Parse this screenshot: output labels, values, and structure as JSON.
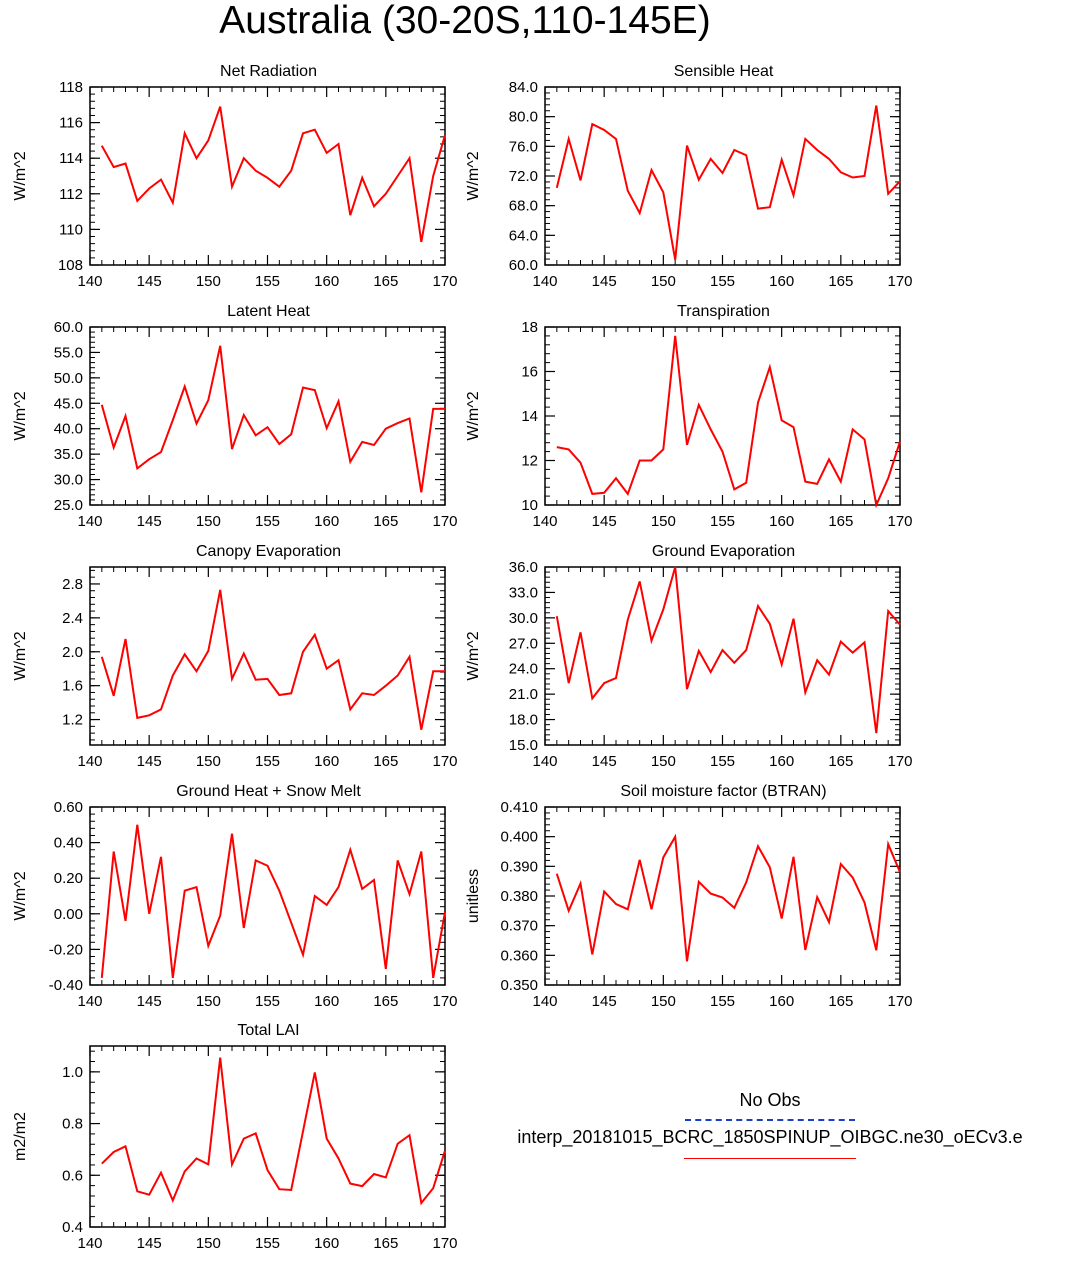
{
  "figure": {
    "title": "Australia (30-20S,110-145E)",
    "line_color": "#ff0000",
    "obs_color": "#1a3fbf"
  },
  "legend": {
    "obs_label": "No Obs",
    "run_label": "interp_20181015_BCRC_1850SPINUP_OIBGC.ne30_oECv3.e"
  },
  "chart_data": [
    {
      "type": "line",
      "title": "Net Radiation",
      "ylabel": "W/m^2",
      "xlim": [
        140,
        170
      ],
      "ylim": [
        108,
        118
      ],
      "decimals": 0,
      "xticks": [
        140,
        145,
        150,
        155,
        160,
        165,
        170
      ],
      "yticks": [
        108,
        110,
        112,
        114,
        116,
        118
      ],
      "x": [
        141,
        142,
        143,
        144,
        145,
        146,
        147,
        148,
        149,
        150,
        151,
        152,
        153,
        154,
        155,
        156,
        157,
        158,
        159,
        160,
        161,
        162,
        163,
        164,
        165,
        166,
        167,
        168,
        169,
        170
      ],
      "y": [
        114.7,
        113.5,
        113.7,
        111.6,
        112.3,
        112.8,
        111.5,
        115.4,
        114.0,
        115.0,
        116.9,
        112.4,
        114.0,
        113.3,
        112.9,
        112.4,
        113.3,
        115.4,
        115.6,
        114.3,
        114.8,
        110.8,
        112.9,
        111.3,
        112.0,
        113.0,
        114.0,
        109.3,
        113.0,
        115.3
      ]
    },
    {
      "type": "line",
      "title": "Sensible Heat",
      "ylabel": "W/m^2",
      "xlim": [
        140,
        170
      ],
      "ylim": [
        60,
        84
      ],
      "decimals": 1,
      "xticks": [
        140,
        145,
        150,
        155,
        160,
        165,
        170
      ],
      "yticks": [
        60,
        64,
        68,
        72,
        76,
        80,
        84
      ],
      "x": [
        141,
        142,
        143,
        144,
        145,
        146,
        147,
        148,
        149,
        150,
        151,
        152,
        153,
        154,
        155,
        156,
        157,
        158,
        159,
        160,
        161,
        162,
        163,
        164,
        165,
        166,
        167,
        168,
        169,
        170
      ],
      "y": [
        70.4,
        77.0,
        71.4,
        79.0,
        78.2,
        77.0,
        70.0,
        67.0,
        72.8,
        69.8,
        60.7,
        76.1,
        71.5,
        74.3,
        72.4,
        75.5,
        74.8,
        67.6,
        67.8,
        74.2,
        69.4,
        77.0,
        75.5,
        74.3,
        72.5,
        71.8,
        72.0,
        81.5,
        69.6,
        71.3
      ]
    },
    {
      "type": "line",
      "title": "Latent Heat",
      "ylabel": "W/m^2",
      "xlim": [
        140,
        170
      ],
      "ylim": [
        25,
        60
      ],
      "decimals": 1,
      "xticks": [
        140,
        145,
        150,
        155,
        160,
        165,
        170
      ],
      "yticks": [
        25,
        30,
        35,
        40,
        45,
        50,
        55,
        60
      ],
      "x": [
        141,
        142,
        143,
        144,
        145,
        146,
        147,
        148,
        149,
        150,
        151,
        152,
        153,
        154,
        155,
        156,
        157,
        158,
        159,
        160,
        161,
        162,
        163,
        164,
        165,
        166,
        167,
        168,
        169,
        170
      ],
      "y": [
        44.7,
        36.3,
        42.5,
        32.2,
        34.0,
        35.4,
        41.7,
        48.3,
        41.0,
        45.6,
        56.3,
        36.0,
        42.7,
        38.7,
        40.3,
        37.0,
        38.9,
        48.1,
        47.6,
        40.1,
        45.4,
        33.5,
        37.4,
        36.8,
        40.0,
        41.1,
        42.0,
        27.5,
        43.9,
        43.9
      ]
    },
    {
      "type": "line",
      "title": "Transpiration",
      "ylabel": "W/m^2",
      "xlim": [
        140,
        170
      ],
      "ylim": [
        10,
        18
      ],
      "decimals": 0,
      "xticks": [
        140,
        145,
        150,
        155,
        160,
        165,
        170
      ],
      "yticks": [
        10,
        12,
        14,
        16,
        18
      ],
      "x": [
        141,
        142,
        143,
        144,
        145,
        146,
        147,
        148,
        149,
        150,
        151,
        152,
        153,
        154,
        155,
        156,
        157,
        158,
        159,
        160,
        161,
        162,
        163,
        164,
        165,
        166,
        167,
        168,
        169,
        170
      ],
      "y": [
        12.6,
        12.5,
        11.9,
        10.5,
        10.55,
        11.2,
        10.5,
        12.0,
        12.0,
        12.5,
        17.6,
        12.7,
        14.5,
        13.4,
        12.4,
        10.7,
        11.0,
        14.6,
        16.2,
        13.8,
        13.5,
        11.05,
        10.95,
        12.05,
        11.05,
        13.4,
        12.95,
        10.0,
        11.2,
        12.85
      ]
    },
    {
      "type": "line",
      "title": "Canopy Evaporation",
      "ylabel": "W/m^2",
      "xlim": [
        140,
        170
      ],
      "ylim": [
        0.9,
        3.0
      ],
      "decimals": 1,
      "xticks": [
        140,
        145,
        150,
        155,
        160,
        165,
        170
      ],
      "yticks": [
        1.2,
        1.6,
        2.0,
        2.4,
        2.8
      ],
      "x": [
        141,
        142,
        143,
        144,
        145,
        146,
        147,
        148,
        149,
        150,
        151,
        152,
        153,
        154,
        155,
        156,
        157,
        158,
        159,
        160,
        161,
        162,
        163,
        164,
        165,
        166,
        167,
        168,
        169,
        170
      ],
      "y": [
        1.94,
        1.48,
        2.15,
        1.22,
        1.25,
        1.32,
        1.72,
        1.97,
        1.77,
        2.01,
        2.73,
        1.68,
        1.98,
        1.67,
        1.68,
        1.49,
        1.51,
        2.0,
        2.2,
        1.8,
        1.9,
        1.32,
        1.51,
        1.49,
        1.6,
        1.72,
        1.94,
        1.08,
        1.77,
        1.77
      ]
    },
    {
      "type": "line",
      "title": "Ground Evaporation",
      "ylabel": "W/m^2",
      "xlim": [
        140,
        170
      ],
      "ylim": [
        15,
        36
      ],
      "decimals": 1,
      "xticks": [
        140,
        145,
        150,
        155,
        160,
        165,
        170
      ],
      "yticks": [
        15,
        18,
        21,
        24,
        27,
        30,
        33,
        36
      ],
      "x": [
        141,
        142,
        143,
        144,
        145,
        146,
        147,
        148,
        149,
        150,
        151,
        152,
        153,
        154,
        155,
        156,
        157,
        158,
        159,
        160,
        161,
        162,
        163,
        164,
        165,
        166,
        167,
        168,
        169,
        170
      ],
      "y": [
        30.2,
        22.3,
        28.3,
        20.5,
        22.3,
        22.9,
        29.8,
        34.3,
        27.3,
        31.0,
        36.0,
        21.6,
        26.1,
        23.6,
        26.2,
        24.7,
        26.2,
        31.4,
        29.3,
        24.5,
        29.9,
        21.2,
        25.0,
        23.3,
        27.2,
        25.9,
        27.1,
        16.4,
        30.8,
        29.2
      ]
    },
    {
      "type": "line",
      "title": "Ground Heat + Snow Melt",
      "ylabel": "W/m^2",
      "xlim": [
        140,
        170
      ],
      "ylim": [
        -0.4,
        0.6
      ],
      "decimals": 2,
      "xticks": [
        140,
        145,
        150,
        155,
        160,
        165,
        170
      ],
      "yticks": [
        -0.4,
        -0.2,
        0.0,
        0.2,
        0.4,
        0.6
      ],
      "x": [
        141,
        142,
        143,
        144,
        145,
        146,
        147,
        148,
        149,
        150,
        151,
        152,
        153,
        154,
        155,
        156,
        157,
        158,
        159,
        160,
        161,
        162,
        163,
        164,
        165,
        166,
        167,
        168,
        169,
        170
      ],
      "y": [
        -0.36,
        0.35,
        -0.04,
        0.5,
        0.0,
        0.32,
        -0.36,
        0.13,
        0.15,
        -0.18,
        -0.01,
        0.45,
        -0.08,
        0.3,
        0.27,
        0.13,
        -0.05,
        -0.23,
        0.1,
        0.05,
        0.15,
        0.36,
        0.14,
        0.19,
        -0.31,
        0.3,
        0.11,
        0.35,
        -0.36,
        0.01
      ]
    },
    {
      "type": "line",
      "title": "Soil moisture factor (BTRAN)",
      "ylabel": "unitless",
      "xlim": [
        140,
        170
      ],
      "ylim": [
        0.35,
        0.41
      ],
      "decimals": 3,
      "xticks": [
        140,
        145,
        150,
        155,
        160,
        165,
        170
      ],
      "yticks": [
        0.35,
        0.36,
        0.37,
        0.38,
        0.39,
        0.4,
        0.41
      ],
      "x": [
        141,
        142,
        143,
        144,
        145,
        146,
        147,
        148,
        149,
        150,
        151,
        152,
        153,
        154,
        155,
        156,
        157,
        158,
        159,
        160,
        161,
        162,
        163,
        164,
        165,
        166,
        167,
        168,
        169,
        170
      ],
      "y": [
        0.3875,
        0.375,
        0.3842,
        0.3603,
        0.3815,
        0.3773,
        0.3755,
        0.3922,
        0.3755,
        0.393,
        0.4,
        0.358,
        0.3848,
        0.3808,
        0.3795,
        0.376,
        0.3846,
        0.3968,
        0.3897,
        0.3724,
        0.3932,
        0.3618,
        0.3796,
        0.3712,
        0.3908,
        0.3862,
        0.3778,
        0.3617,
        0.3975,
        0.388
      ]
    },
    {
      "type": "line",
      "title": "Total LAI",
      "ylabel": "m2/m2",
      "xlim": [
        140,
        170
      ],
      "ylim": [
        0.4,
        1.1
      ],
      "decimals": 1,
      "xticks": [
        140,
        145,
        150,
        155,
        160,
        165,
        170
      ],
      "yticks": [
        0.4,
        0.6,
        0.8,
        1.0
      ],
      "x": [
        141,
        142,
        143,
        144,
        145,
        146,
        147,
        148,
        149,
        150,
        151,
        152,
        153,
        154,
        155,
        156,
        157,
        158,
        159,
        160,
        161,
        162,
        163,
        164,
        165,
        166,
        167,
        168,
        169,
        170
      ],
      "y": [
        0.645,
        0.69,
        0.712,
        0.538,
        0.525,
        0.61,
        0.503,
        0.615,
        0.665,
        0.642,
        1.055,
        0.642,
        0.742,
        0.762,
        0.62,
        0.546,
        0.543,
        0.77,
        0.998,
        0.742,
        0.665,
        0.568,
        0.558,
        0.605,
        0.592,
        0.722,
        0.755,
        0.493,
        0.55,
        0.695
      ]
    }
  ]
}
